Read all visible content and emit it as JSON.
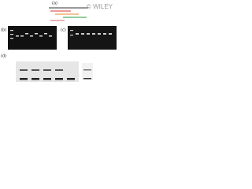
{
  "watermark": "© WILEY",
  "panels": [
    {
      "label": "(a)"
    },
    {
      "label": "(b)"
    },
    {
      "label": "(c)"
    },
    {
      "label": "(d)"
    }
  ]
}
